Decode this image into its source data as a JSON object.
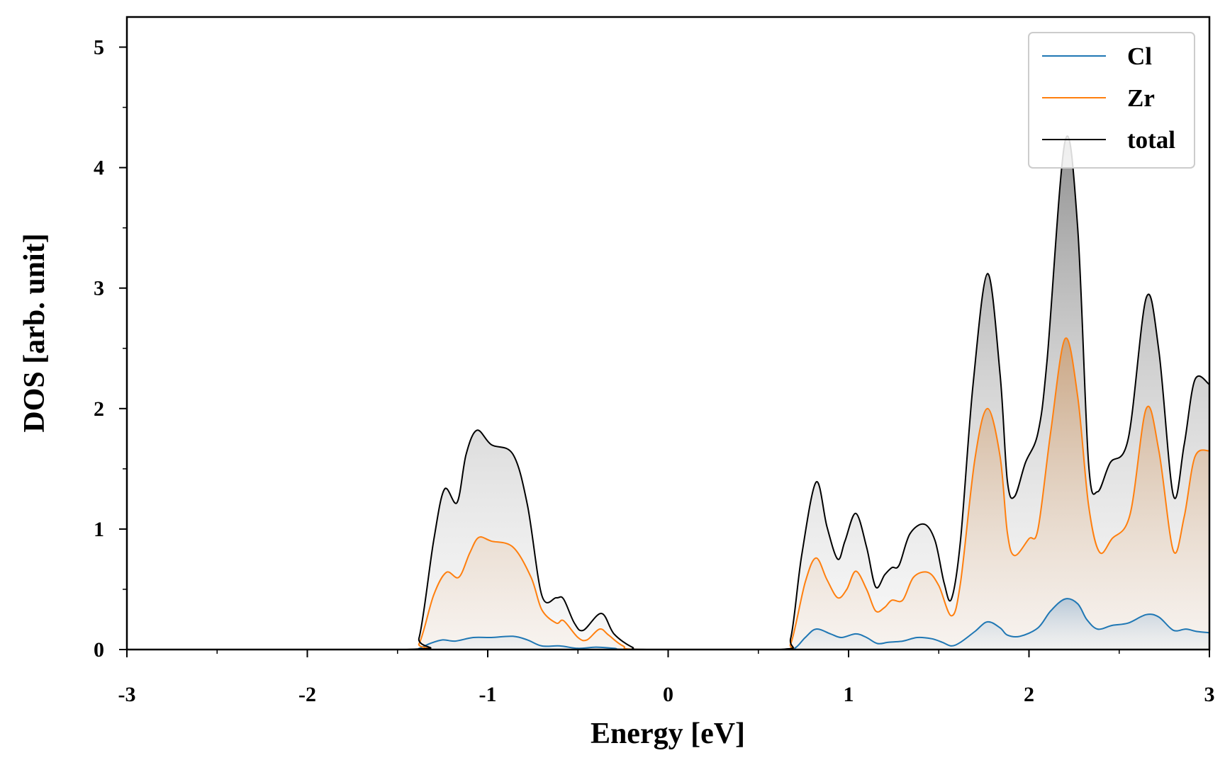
{
  "chart_data": {
    "type": "area",
    "xlabel": "Energy [eV]",
    "ylabel": "DOS [arb. unit]",
    "xlim": [
      -3,
      3
    ],
    "ylim": [
      0,
      5.25
    ],
    "x_ticks": [
      -3,
      -2,
      -1,
      0,
      1,
      2,
      3
    ],
    "x_tick_labels": [
      "-3",
      "-2",
      "-1",
      "0",
      "1",
      "2",
      "3"
    ],
    "y_ticks": [
      0,
      1,
      2,
      3,
      4,
      5
    ],
    "y_tick_labels": [
      "0",
      "1",
      "2",
      "3",
      "4",
      "5"
    ],
    "grid": false,
    "legend_position": "top-right",
    "series": [
      {
        "name": "Cl",
        "color": "#1f77b4",
        "points": [
          [
            -3.0,
            0
          ],
          [
            -1.45,
            0
          ],
          [
            -1.38,
            0.01
          ],
          [
            -1.32,
            0.05
          ],
          [
            -1.25,
            0.08
          ],
          [
            -1.18,
            0.07
          ],
          [
            -1.08,
            0.1
          ],
          [
            -0.98,
            0.1
          ],
          [
            -0.86,
            0.11
          ],
          [
            -0.78,
            0.08
          ],
          [
            -0.7,
            0.03
          ],
          [
            -0.6,
            0.03
          ],
          [
            -0.5,
            0.01
          ],
          [
            -0.4,
            0.02
          ],
          [
            -0.3,
            0.01
          ],
          [
            -0.18,
            0
          ],
          [
            0.62,
            0
          ],
          [
            0.7,
            0.01
          ],
          [
            0.76,
            0.1
          ],
          [
            0.82,
            0.17
          ],
          [
            0.9,
            0.13
          ],
          [
            0.96,
            0.1
          ],
          [
            1.04,
            0.13
          ],
          [
            1.1,
            0.1
          ],
          [
            1.16,
            0.05
          ],
          [
            1.22,
            0.06
          ],
          [
            1.3,
            0.07
          ],
          [
            1.38,
            0.1
          ],
          [
            1.46,
            0.09
          ],
          [
            1.52,
            0.06
          ],
          [
            1.57,
            0.03
          ],
          [
            1.62,
            0.06
          ],
          [
            1.7,
            0.15
          ],
          [
            1.77,
            0.23
          ],
          [
            1.84,
            0.18
          ],
          [
            1.88,
            0.12
          ],
          [
            1.95,
            0.11
          ],
          [
            2.05,
            0.18
          ],
          [
            2.12,
            0.32
          ],
          [
            2.2,
            0.42
          ],
          [
            2.27,
            0.38
          ],
          [
            2.32,
            0.25
          ],
          [
            2.38,
            0.17
          ],
          [
            2.46,
            0.2
          ],
          [
            2.55,
            0.22
          ],
          [
            2.65,
            0.29
          ],
          [
            2.72,
            0.27
          ],
          [
            2.8,
            0.16
          ],
          [
            2.87,
            0.17
          ],
          [
            2.93,
            0.15
          ],
          [
            3.0,
            0.14
          ]
        ]
      },
      {
        "name": "Zr",
        "color": "#ff7f0e",
        "points": [
          [
            -3.0,
            0
          ],
          [
            -1.45,
            0
          ],
          [
            -1.38,
            0.05
          ],
          [
            -1.3,
            0.45
          ],
          [
            -1.23,
            0.64
          ],
          [
            -1.16,
            0.6
          ],
          [
            -1.1,
            0.8
          ],
          [
            -1.05,
            0.93
          ],
          [
            -0.98,
            0.9
          ],
          [
            -0.86,
            0.85
          ],
          [
            -0.76,
            0.6
          ],
          [
            -0.7,
            0.33
          ],
          [
            -0.62,
            0.22
          ],
          [
            -0.58,
            0.24
          ],
          [
            -0.5,
            0.1
          ],
          [
            -0.45,
            0.08
          ],
          [
            -0.38,
            0.17
          ],
          [
            -0.33,
            0.12
          ],
          [
            -0.25,
            0.03
          ],
          [
            -0.15,
            0
          ],
          [
            0.62,
            0
          ],
          [
            0.68,
            0.05
          ],
          [
            0.76,
            0.56
          ],
          [
            0.82,
            0.76
          ],
          [
            0.88,
            0.58
          ],
          [
            0.94,
            0.43
          ],
          [
            0.99,
            0.5
          ],
          [
            1.04,
            0.65
          ],
          [
            1.1,
            0.5
          ],
          [
            1.15,
            0.32
          ],
          [
            1.2,
            0.35
          ],
          [
            1.24,
            0.41
          ],
          [
            1.3,
            0.41
          ],
          [
            1.36,
            0.6
          ],
          [
            1.44,
            0.64
          ],
          [
            1.5,
            0.53
          ],
          [
            1.57,
            0.28
          ],
          [
            1.62,
            0.55
          ],
          [
            1.7,
            1.58
          ],
          [
            1.77,
            2.0
          ],
          [
            1.84,
            1.6
          ],
          [
            1.88,
            0.97
          ],
          [
            1.92,
            0.78
          ],
          [
            2.0,
            0.92
          ],
          [
            2.05,
            1.0
          ],
          [
            2.12,
            1.8
          ],
          [
            2.2,
            2.58
          ],
          [
            2.27,
            2.1
          ],
          [
            2.33,
            1.2
          ],
          [
            2.39,
            0.81
          ],
          [
            2.46,
            0.92
          ],
          [
            2.56,
            1.12
          ],
          [
            2.65,
            2.0
          ],
          [
            2.72,
            1.65
          ],
          [
            2.8,
            0.82
          ],
          [
            2.86,
            1.1
          ],
          [
            2.92,
            1.6
          ],
          [
            3.0,
            1.65
          ]
        ]
      },
      {
        "name": "total",
        "color": "#000000",
        "points": [
          [
            -3.0,
            0
          ],
          [
            -1.45,
            0
          ],
          [
            -1.38,
            0.1
          ],
          [
            -1.3,
            0.9
          ],
          [
            -1.24,
            1.33
          ],
          [
            -1.17,
            1.22
          ],
          [
            -1.12,
            1.62
          ],
          [
            -1.06,
            1.82
          ],
          [
            -0.98,
            1.7
          ],
          [
            -0.86,
            1.62
          ],
          [
            -0.78,
            1.2
          ],
          [
            -0.7,
            0.45
          ],
          [
            -0.62,
            0.43
          ],
          [
            -0.58,
            0.42
          ],
          [
            -0.52,
            0.22
          ],
          [
            -0.47,
            0.16
          ],
          [
            -0.37,
            0.3
          ],
          [
            -0.3,
            0.13
          ],
          [
            -0.2,
            0.02
          ],
          [
            -0.12,
            0
          ],
          [
            0.62,
            0
          ],
          [
            0.68,
            0.1
          ],
          [
            0.74,
            0.78
          ],
          [
            0.82,
            1.39
          ],
          [
            0.88,
            1.02
          ],
          [
            0.94,
            0.75
          ],
          [
            0.98,
            0.9
          ],
          [
            1.04,
            1.13
          ],
          [
            1.1,
            0.85
          ],
          [
            1.15,
            0.52
          ],
          [
            1.2,
            0.62
          ],
          [
            1.24,
            0.68
          ],
          [
            1.28,
            0.7
          ],
          [
            1.34,
            0.96
          ],
          [
            1.42,
            1.04
          ],
          [
            1.48,
            0.9
          ],
          [
            1.53,
            0.55
          ],
          [
            1.57,
            0.42
          ],
          [
            1.62,
            0.9
          ],
          [
            1.69,
            2.2
          ],
          [
            1.77,
            3.12
          ],
          [
            1.84,
            2.28
          ],
          [
            1.88,
            1.4
          ],
          [
            1.92,
            1.27
          ],
          [
            1.98,
            1.55
          ],
          [
            2.05,
            1.8
          ],
          [
            2.1,
            2.4
          ],
          [
            2.2,
            4.22
          ],
          [
            2.27,
            3.5
          ],
          [
            2.33,
            1.55
          ],
          [
            2.38,
            1.31
          ],
          [
            2.45,
            1.55
          ],
          [
            2.55,
            1.75
          ],
          [
            2.65,
            2.92
          ],
          [
            2.72,
            2.48
          ],
          [
            2.8,
            1.28
          ],
          [
            2.86,
            1.7
          ],
          [
            2.92,
            2.24
          ],
          [
            3.0,
            2.2
          ]
        ]
      }
    ]
  }
}
